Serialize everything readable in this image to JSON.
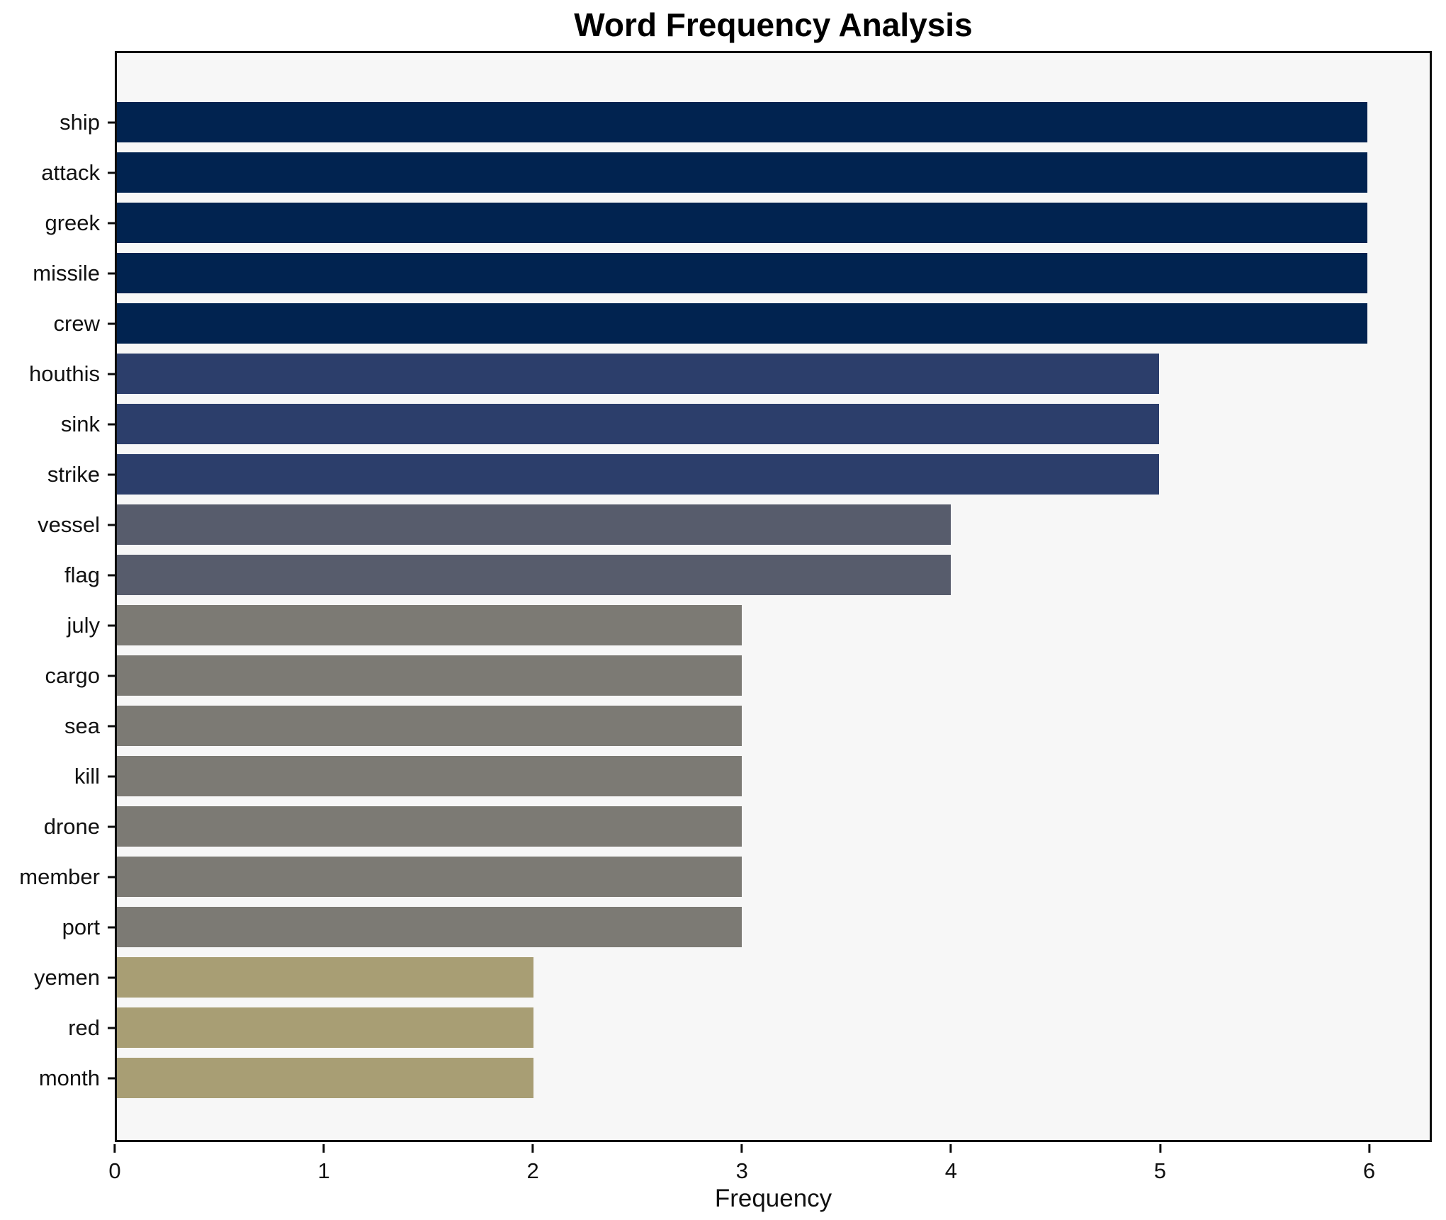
{
  "chart_data": {
    "type": "bar",
    "orientation": "horizontal",
    "title": "Word Frequency Analysis",
    "xlabel": "Frequency",
    "ylabel": "",
    "categories": [
      "ship",
      "attack",
      "greek",
      "missile",
      "crew",
      "houthis",
      "sink",
      "strike",
      "vessel",
      "flag",
      "july",
      "cargo",
      "sea",
      "kill",
      "drone",
      "member",
      "port",
      "yemen",
      "red",
      "month"
    ],
    "values": [
      6,
      6,
      6,
      6,
      6,
      5,
      5,
      5,
      4,
      4,
      3,
      3,
      3,
      3,
      3,
      3,
      3,
      2,
      2,
      2
    ],
    "xlim": [
      0,
      6.3
    ],
    "xticks": [
      0,
      1,
      2,
      3,
      4,
      5,
      6
    ],
    "grid": false,
    "legend": "none",
    "colors": {
      "plot_background": "#f7f7f7",
      "figure_background": "#ffffff",
      "spine": "#0d0d0d",
      "value_colors": {
        "6": "#012350",
        "5": "#2c3e6b",
        "4": "#575c6c",
        "3": "#7c7a74",
        "2": "#a89e74"
      }
    }
  }
}
